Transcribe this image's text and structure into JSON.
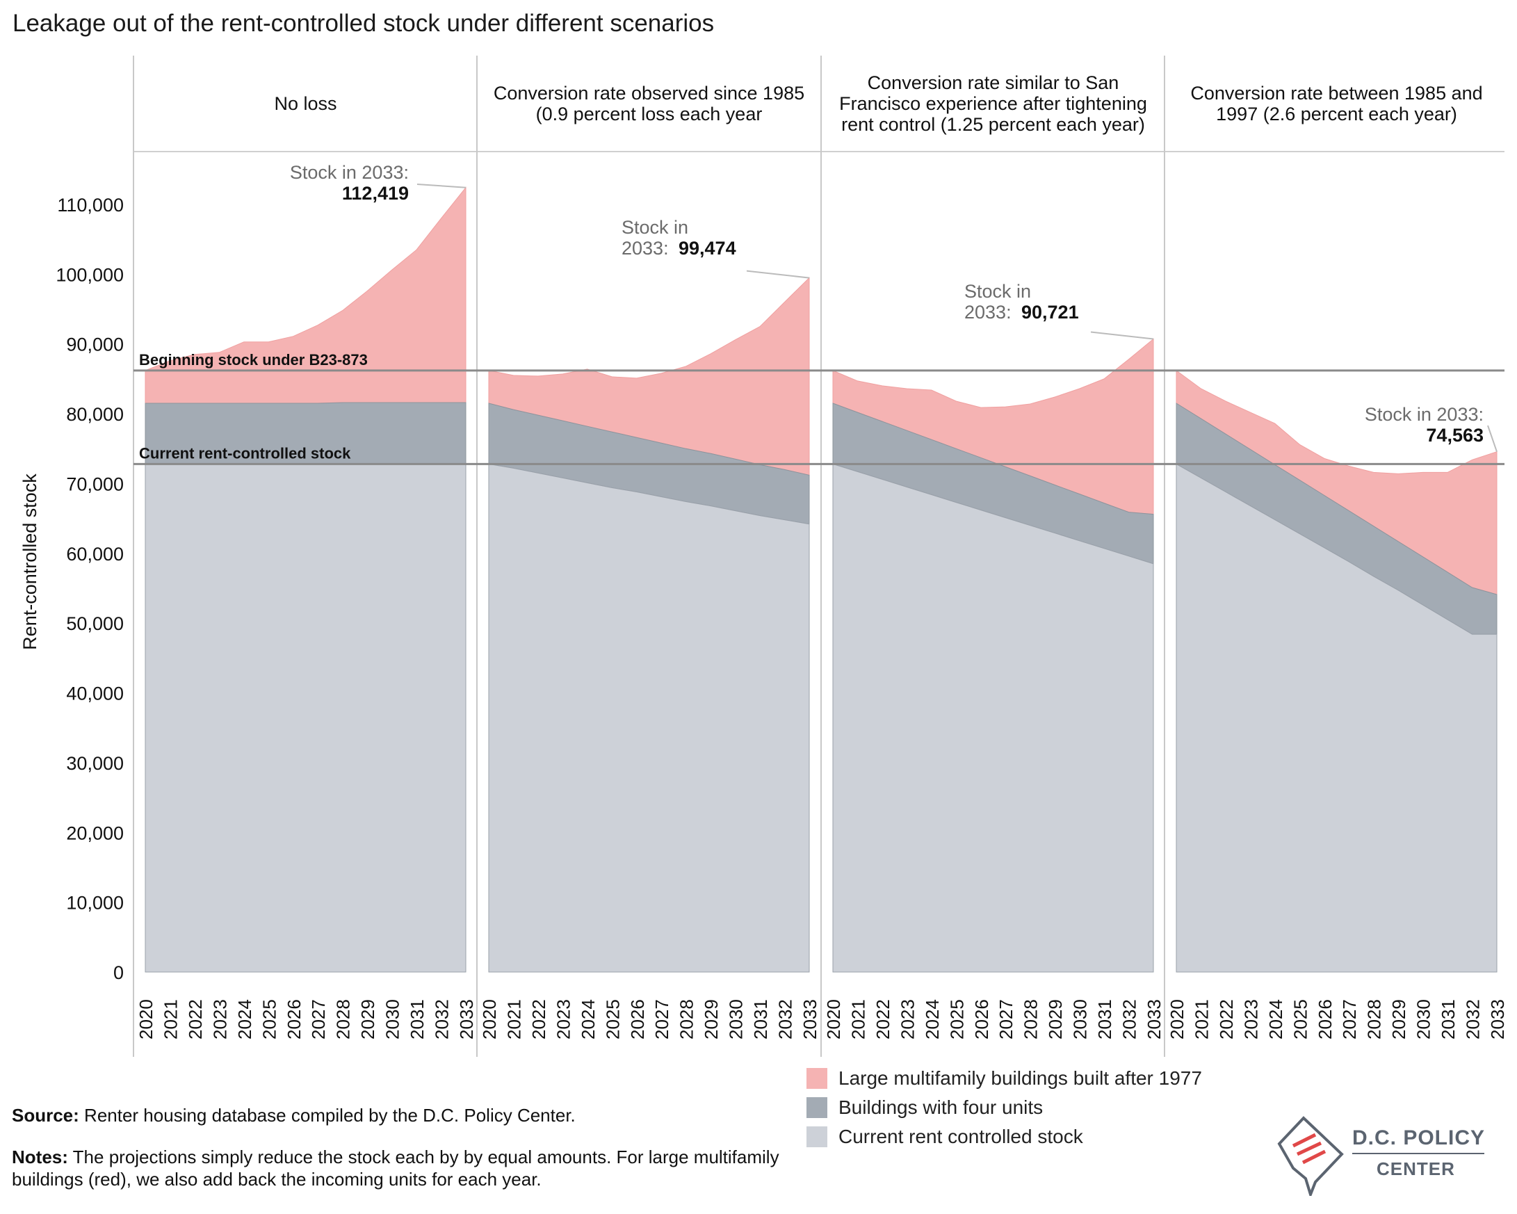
{
  "title": "Leakage out of the rent-controlled stock under different scenarios",
  "colors": {
    "large_multifamily": "#f5b3b3",
    "four_units": "#a3abb4",
    "current_stock": "#cdd1d8",
    "reference_line": "#8a8a8a"
  },
  "chart_data": {
    "type": "area",
    "stacked": true,
    "ylabel": "Rent-controlled stock",
    "ylim": [
      0,
      117000
    ],
    "yticks": [
      0,
      10000,
      20000,
      30000,
      40000,
      50000,
      60000,
      70000,
      80000,
      90000,
      100000,
      110000
    ],
    "ytick_labels": [
      "0",
      "10,000",
      "20,000",
      "30,000",
      "40,000",
      "50,000",
      "60,000",
      "70,000",
      "80,000",
      "90,000",
      "100,000",
      "110,000"
    ],
    "x": [
      "2020",
      "2021",
      "2022",
      "2023",
      "2024",
      "2025",
      "2026",
      "2027",
      "2028",
      "2029",
      "2030",
      "2031",
      "2032",
      "2033"
    ],
    "reference_lines": [
      {
        "label": "Beginning stock under B23-873",
        "value": 86200
      },
      {
        "label": "Current rent-controlled stock",
        "value": 72800
      }
    ],
    "series_names": [
      "Large multifamily buildings built after 1977",
      "Buildings with four units",
      "Current rent controlled stock"
    ],
    "panels": [
      {
        "title": "No loss",
        "current": [
          72800,
          72800,
          72800,
          72800,
          72800,
          72800,
          72800,
          72800,
          72800,
          72800,
          72800,
          72800,
          72800,
          72800
        ],
        "four_units_top": [
          81500,
          81500,
          81500,
          81500,
          81500,
          81500,
          81500,
          81500,
          81600,
          81600,
          81600,
          81600,
          81600,
          81600
        ],
        "total": [
          86200,
          87600,
          88500,
          88800,
          90300,
          90300,
          91100,
          92700,
          94800,
          97600,
          100600,
          103500,
          108000,
          112419
        ],
        "annotation_prefix": "Stock in 2033:",
        "annotation_value": "112,419"
      },
      {
        "title": "Conversion rate observed since 1985 (0.9 percent loss each year",
        "current": [
          72800,
          72200,
          71500,
          70800,
          70100,
          69400,
          68800,
          68100,
          67400,
          66800,
          66100,
          65400,
          64800,
          64200
        ],
        "four_units_top": [
          81500,
          80600,
          79800,
          79000,
          78200,
          77400,
          76600,
          75800,
          75000,
          74300,
          73500,
          72700,
          72000,
          71200
        ],
        "total": [
          86200,
          85500,
          85400,
          85700,
          86400,
          85300,
          85100,
          85800,
          86800,
          88600,
          90600,
          92500,
          96000,
          99474
        ],
        "annotation_prefix": "Stock in 2033:",
        "annotation_value": "99,474"
      },
      {
        "title": "Conversion rate similar to San Francisco experience after tightening rent control (1.25 percent each year)",
        "current": [
          72800,
          71700,
          70600,
          69500,
          68400,
          67300,
          66200,
          65100,
          64000,
          62900,
          61800,
          60700,
          59600,
          58500
        ],
        "four_units_top": [
          81500,
          80200,
          78900,
          77600,
          76300,
          75000,
          73700,
          72400,
          71100,
          69800,
          68500,
          67200,
          65900,
          65600
        ],
        "total": [
          86200,
          84700,
          84000,
          83600,
          83400,
          81800,
          80900,
          81000,
          81400,
          82400,
          83600,
          85000,
          87800,
          90721
        ],
        "annotation_prefix": "Stock in 2033:",
        "annotation_value": "90,721"
      },
      {
        "title": "Conversion rate between 1985 and 1997 (2.6 percent each year)",
        "current": [
          72800,
          70800,
          68800,
          66800,
          64800,
          62800,
          60800,
          58800,
          56700,
          54700,
          52600,
          50500,
          48400,
          48400
        ],
        "four_units_top": [
          81500,
          79300,
          77100,
          74900,
          72700,
          70500,
          68300,
          66100,
          63900,
          61700,
          59500,
          57300,
          55100,
          54100
        ],
        "total": [
          86200,
          83600,
          81800,
          80200,
          78600,
          75600,
          73600,
          72500,
          71600,
          71400,
          71600,
          71600,
          73400,
          74563
        ],
        "annotation_prefix": "Stock in 2033:",
        "annotation_value": "74,563"
      }
    ]
  },
  "panel_titles": [
    "No loss",
    "Conversion rate observed since 1985\n(0.9 percent loss each year",
    "Conversion rate similar to San\nFrancisco experience after tightening\nrent control (1.25 percent each year)",
    "Conversion rate between 1985 and\n1997 (2.6 percent each year)"
  ],
  "legend": [
    {
      "label": "Large multifamily buildings built after 1977",
      "color": "#f5b3b3"
    },
    {
      "label": "Buildings with four units",
      "color": "#a3abb4"
    },
    {
      "label": "Current rent controlled stock",
      "color": "#cdd1d8"
    }
  ],
  "footer": {
    "source_label": "Source:",
    "source_text": "Renter housing database compiled by the D.C. Policy Center.",
    "notes_label": "Notes:",
    "notes_text": "The projections simply reduce the stock each by by equal amounts. For large multifamily buildings (red), we also add back the incoming units for each year."
  },
  "logo": {
    "line1": "D.C. POLICY",
    "line2": "CENTER"
  }
}
